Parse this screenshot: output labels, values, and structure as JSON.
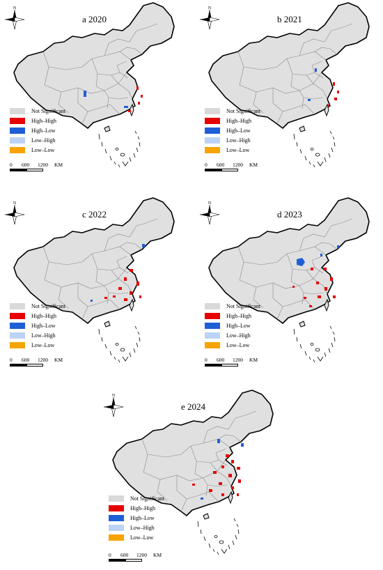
{
  "panels": [
    {
      "id": "2020",
      "title": "a 2020"
    },
    {
      "id": "2021",
      "title": "b 2021"
    },
    {
      "id": "2022",
      "title": "c 2022"
    },
    {
      "id": "2023",
      "title": "d 2023"
    },
    {
      "id": "2024",
      "title": "e 2024"
    }
  ],
  "legend": [
    {
      "label": "Not Significant",
      "color": "#d9d9d9"
    },
    {
      "label": "High–High",
      "color": "#e60000"
    },
    {
      "label": "High–Low",
      "color": "#1f5fd6"
    },
    {
      "label": "Low–High",
      "color": "#bcd3f5"
    },
    {
      "label": "Low–Low",
      "color": "#f7a400"
    }
  ],
  "north_label": "N",
  "scale": {
    "ticks": [
      "0",
      "600",
      "1200"
    ],
    "unit": "KM"
  },
  "map_fill": "#e0e0e0"
}
